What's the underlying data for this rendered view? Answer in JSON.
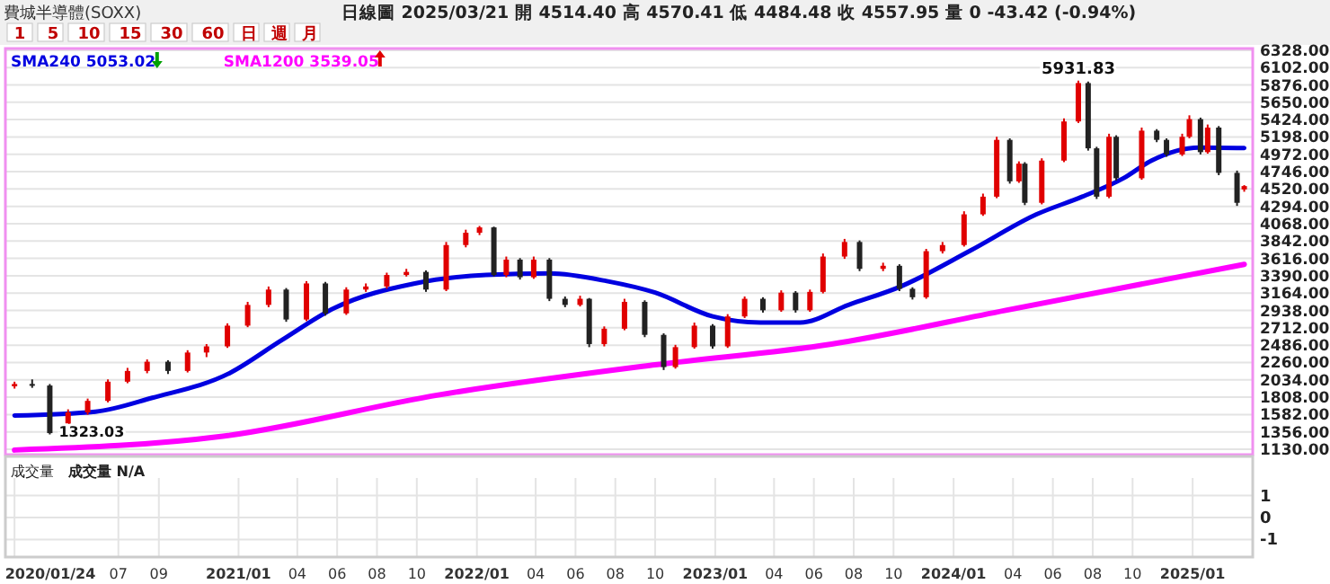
{
  "chart_data": [
    {
      "type": "candlestick",
      "title": "費城半導體(SOXX)",
      "subtitle": "日線圖 2025/03/21 開 4514.40 高 4570.41 低 4484.48 收 4557.95 量 0 -43.42 (-0.94%)",
      "annotations": [
        "1 5 10 15 30 60 日 週 月",
        {
          "text": "5931.83",
          "x": "2024-07-10",
          "y": 5931.83
        },
        {
          "text": "1323.03",
          "x": "2020-03-18",
          "y": 1323.03
        }
      ],
      "x": [
        "2020-01-24",
        "2020-02-20",
        "2020-03-18",
        "2020-04-15",
        "2020-05-15",
        "2020-06-15",
        "2020-07-15",
        "2020-08-14",
        "2020-09-15",
        "2020-10-15",
        "2020-11-13",
        "2020-12-15",
        "2021-01-15",
        "2021-02-16",
        "2021-03-15",
        "2021-04-15",
        "2021-05-14",
        "2021-06-15",
        "2021-07-15",
        "2021-08-16",
        "2021-09-15",
        "2021-10-15",
        "2021-11-15",
        "2021-12-15",
        "2022-01-05",
        "2022-01-27",
        "2022-02-15",
        "2022-03-08",
        "2022-03-29",
        "2022-04-22",
        "2022-05-16",
        "2022-06-08",
        "2022-06-22",
        "2022-07-15",
        "2022-08-15",
        "2022-09-15",
        "2022-10-14",
        "2022-11-01",
        "2022-11-30",
        "2022-12-28",
        "2023-01-20",
        "2023-02-15",
        "2023-03-15",
        "2023-04-12",
        "2023-05-04",
        "2023-05-26",
        "2023-06-15",
        "2023-07-18",
        "2023-08-10",
        "2023-09-15",
        "2023-10-10",
        "2023-10-30",
        "2023-11-20",
        "2023-12-15",
        "2024-01-17",
        "2024-02-15",
        "2024-03-07",
        "2024-03-27",
        "2024-04-10",
        "2024-04-19",
        "2024-05-15",
        "2024-06-18",
        "2024-07-10",
        "2024-07-25",
        "2024-08-07",
        "2024-08-26",
        "2024-09-06",
        "2024-10-15",
        "2024-11-07",
        "2024-11-22",
        "2024-12-16",
        "2024-12-27",
        "2025-01-13",
        "2025-01-24",
        "2025-02-10",
        "2025-03-10",
        "2025-03-21"
      ],
      "ohlc": [
        [
          1950,
          2010,
          1920,
          1980
        ],
        [
          1980,
          2040,
          1930,
          1960
        ],
        [
          1960,
          1980,
          1323.03,
          1340
        ],
        [
          1340,
          1650,
          1320,
          1610
        ],
        [
          1610,
          1790,
          1580,
          1760
        ],
        [
          1760,
          2040,
          1740,
          2010
        ],
        [
          2010,
          2190,
          1990,
          2150
        ],
        [
          2150,
          2300,
          2120,
          2270
        ],
        [
          2270,
          2290,
          2110,
          2150
        ],
        [
          2150,
          2420,
          2130,
          2390
        ],
        [
          2390,
          2500,
          2330,
          2470
        ],
        [
          2470,
          2770,
          2450,
          2740
        ],
        [
          2740,
          3050,
          2720,
          3010
        ],
        [
          3010,
          3250,
          2980,
          3210
        ],
        [
          3210,
          3230,
          2790,
          2820
        ],
        [
          2820,
          3320,
          2800,
          3290
        ],
        [
          3290,
          3310,
          2870,
          2900
        ],
        [
          2900,
          3240,
          2880,
          3210
        ],
        [
          3210,
          3290,
          3180,
          3250
        ],
        [
          3250,
          3430,
          3220,
          3400
        ],
        [
          3400,
          3480,
          3380,
          3440
        ],
        [
          3440,
          3460,
          3180,
          3210
        ],
        [
          3210,
          3830,
          3190,
          3790
        ],
        [
          3790,
          3990,
          3760,
          3950
        ],
        [
          3950,
          4039,
          3920,
          4020
        ],
        [
          4020,
          4030,
          3380,
          3400
        ],
        [
          3400,
          3640,
          3370,
          3600
        ],
        [
          3600,
          3620,
          3340,
          3370
        ],
        [
          3370,
          3640,
          3350,
          3600
        ],
        [
          3600,
          3620,
          3060,
          3090
        ],
        [
          3090,
          3120,
          2980,
          3010
        ],
        [
          3010,
          3130,
          2990,
          3090
        ],
        [
          3090,
          3100,
          2460,
          2500
        ],
        [
          2500,
          2730,
          2470,
          2700
        ],
        [
          2700,
          3090,
          2680,
          3050
        ],
        [
          3050,
          3070,
          2590,
          2620
        ],
        [
          2620,
          2640,
          2162,
          2200
        ],
        [
          2200,
          2490,
          2180,
          2460
        ],
        [
          2460,
          2780,
          2440,
          2740
        ],
        [
          2740,
          2760,
          2440,
          2470
        ],
        [
          2470,
          2890,
          2450,
          2860
        ],
        [
          2860,
          3120,
          2840,
          3090
        ],
        [
          3090,
          3110,
          2910,
          2940
        ],
        [
          2940,
          3200,
          2920,
          3170
        ],
        [
          3170,
          3190,
          2910,
          2940
        ],
        [
          2940,
          3210,
          2920,
          3180
        ],
        [
          3180,
          3680,
          3160,
          3640
        ],
        [
          3640,
          3870,
          3610,
          3830
        ],
        [
          3830,
          3850,
          3450,
          3480
        ],
        [
          3480,
          3560,
          3450,
          3520
        ],
        [
          3520,
          3540,
          3190,
          3220
        ],
        [
          3220,
          3240,
          3080,
          3110
        ],
        [
          3110,
          3740,
          3090,
          3710
        ],
        [
          3710,
          3830,
          3680,
          3790
        ],
        [
          3790,
          4230,
          3770,
          4190
        ],
        [
          4190,
          4460,
          4170,
          4420
        ],
        [
          4420,
          5200,
          4400,
          5160
        ],
        [
          5160,
          5180,
          4590,
          4620
        ],
        [
          4620,
          4880,
          4600,
          4850
        ],
        [
          4850,
          4870,
          4310,
          4340
        ],
        [
          4340,
          4920,
          4320,
          4890
        ],
        [
          4890,
          5440,
          4870,
          5400
        ],
        [
          5400,
          5931.83,
          5380,
          5900
        ],
        [
          5900,
          5920,
          5020,
          5050
        ],
        [
          5050,
          5070,
          4390,
          4420
        ],
        [
          4420,
          5240,
          4400,
          5200
        ],
        [
          5200,
          5220,
          4630,
          4660
        ],
        [
          4660,
          5320,
          4640,
          5280
        ],
        [
          5280,
          5300,
          5130,
          5160
        ],
        [
          5160,
          5180,
          4940,
          4970
        ],
        [
          4970,
          5240,
          4950,
          5200
        ],
        [
          5200,
          5480,
          5180,
          5430
        ],
        [
          5430,
          5450,
          4970,
          5000
        ],
        [
          5000,
          5360,
          4980,
          5320
        ],
        [
          5320,
          5340,
          4700,
          4730
        ],
        [
          4730,
          4760,
          4300,
          4340
        ],
        [
          4514.4,
          4570.41,
          4484.48,
          4557.95
        ]
      ],
      "series": [
        {
          "name": "SMA240 5053.02",
          "color": "#0000e0",
          "type": "line",
          "x": [
            "2020-01-24",
            "2020-05-27",
            "2020-08-22",
            "2020-12-18",
            "2021-03-08",
            "2021-05-28",
            "2021-09-28",
            "2022-01-15",
            "2022-04-22",
            "2022-07-19",
            "2022-10-01",
            "2022-12-28",
            "2023-03-11",
            "2023-05-11",
            "2023-07-24",
            "2023-10-12",
            "2024-01-27",
            "2024-05-07",
            "2024-07-16",
            "2024-09-17",
            "2024-10-30",
            "2025-01-11",
            "2025-03-21"
          ],
          "values": [
            1570,
            1620,
            1800,
            2120,
            2550,
            2970,
            3290,
            3400,
            3420,
            3320,
            3170,
            2860,
            2780,
            2780,
            3010,
            3250,
            3720,
            4190,
            4420,
            4660,
            4890,
            5060,
            5053.02
          ]
        },
        {
          "name": "SMA1200 3539.05",
          "color": "#ff00ff",
          "type": "line",
          "x": [
            "2020-01-24",
            "2020-12-08",
            "2021-11-05",
            "2022-10-01",
            "2023-06-28",
            "2024-03-21",
            "2025-03-21"
          ],
          "values": [
            1120,
            1300,
            1840,
            2230,
            2500,
            2940,
            3539.05
          ]
        }
      ],
      "xlim": [
        "2020-01-10",
        "2025-04-03"
      ],
      "ylim": [
        1060,
        6350
      ],
      "yticks": [
        {
          "value": 1130,
          "label": "1130.00"
        },
        {
          "value": 1356,
          "label": "1356.00"
        },
        {
          "value": 1582,
          "label": "1582.00"
        },
        {
          "value": 1808,
          "label": "1808.00"
        },
        {
          "value": 2034,
          "label": "2034.00"
        },
        {
          "value": 2260,
          "label": "2260.00"
        },
        {
          "value": 2486,
          "label": "2486.00"
        },
        {
          "value": 2712,
          "label": "2712.00"
        },
        {
          "value": 2938,
          "label": "2938.00"
        },
        {
          "value": 3164,
          "label": "3164.00"
        },
        {
          "value": 3390,
          "label": "3390.00"
        },
        {
          "value": 3616,
          "label": "3616.00"
        },
        {
          "value": 3842,
          "label": "3842.00"
        },
        {
          "value": 4068,
          "label": "4068.00"
        },
        {
          "value": 4294,
          "label": "4294.00"
        },
        {
          "value": 4520,
          "label": "4520.00"
        },
        {
          "value": 4746,
          "label": "4746.00"
        },
        {
          "value": 4972,
          "label": "4972.00"
        },
        {
          "value": 5198,
          "label": "5198.00"
        },
        {
          "value": 5424,
          "label": "5424.00"
        },
        {
          "value": 5650,
          "label": "5650.00"
        },
        {
          "value": 5876,
          "label": "5876.00"
        },
        {
          "value": 6102,
          "label": "6102.00"
        },
        {
          "value": 6328,
          "label": "6328.00"
        }
      ],
      "grid": true,
      "legend": "top left",
      "tick_labels": "y"
    },
    {
      "type": "bar",
      "title": "成交量",
      "annotations": [
        "成交量 N/A"
      ],
      "xlim": [
        "2020-01-10",
        "2025-04-03"
      ],
      "xticks": [
        {
          "value": "2020-01-24",
          "label": "2020/01/24"
        },
        {
          "value": "2020-07-01",
          "label": "07"
        },
        {
          "value": "2020-09-01",
          "label": "09"
        },
        {
          "value": "2021-01-01",
          "label": "2021/01"
        },
        {
          "value": "2021-04-01",
          "label": "04"
        },
        {
          "value": "2021-06-01",
          "label": "06"
        },
        {
          "value": "2021-08-01",
          "label": "08"
        },
        {
          "value": "2021-10-01",
          "label": "10"
        },
        {
          "value": "2022-01-01",
          "label": "2022/01"
        },
        {
          "value": "2022-04-01",
          "label": "04"
        },
        {
          "value": "2022-06-01",
          "label": "06"
        },
        {
          "value": "2022-08-01",
          "label": "08"
        },
        {
          "value": "2022-10-01",
          "label": "10"
        },
        {
          "value": "2023-01-01",
          "label": "2023/01"
        },
        {
          "value": "2023-04-01",
          "label": "04"
        },
        {
          "value": "2023-06-01",
          "label": "06"
        },
        {
          "value": "2023-08-01",
          "label": "08"
        },
        {
          "value": "2023-10-01",
          "label": "10"
        },
        {
          "value": "2024-01-01",
          "label": "2024/01"
        },
        {
          "value": "2024-04-01",
          "label": "04"
        },
        {
          "value": "2024-06-01",
          "label": "06"
        },
        {
          "value": "2024-08-01",
          "label": "08"
        },
        {
          "value": "2024-10-01",
          "label": "10"
        },
        {
          "value": "2025-01-01",
          "label": "2025/01"
        }
      ],
      "ylim": [
        -1.8,
        1.8
      ],
      "yticks": [
        -1,
        0,
        1
      ],
      "grid": true
    }
  ]
}
